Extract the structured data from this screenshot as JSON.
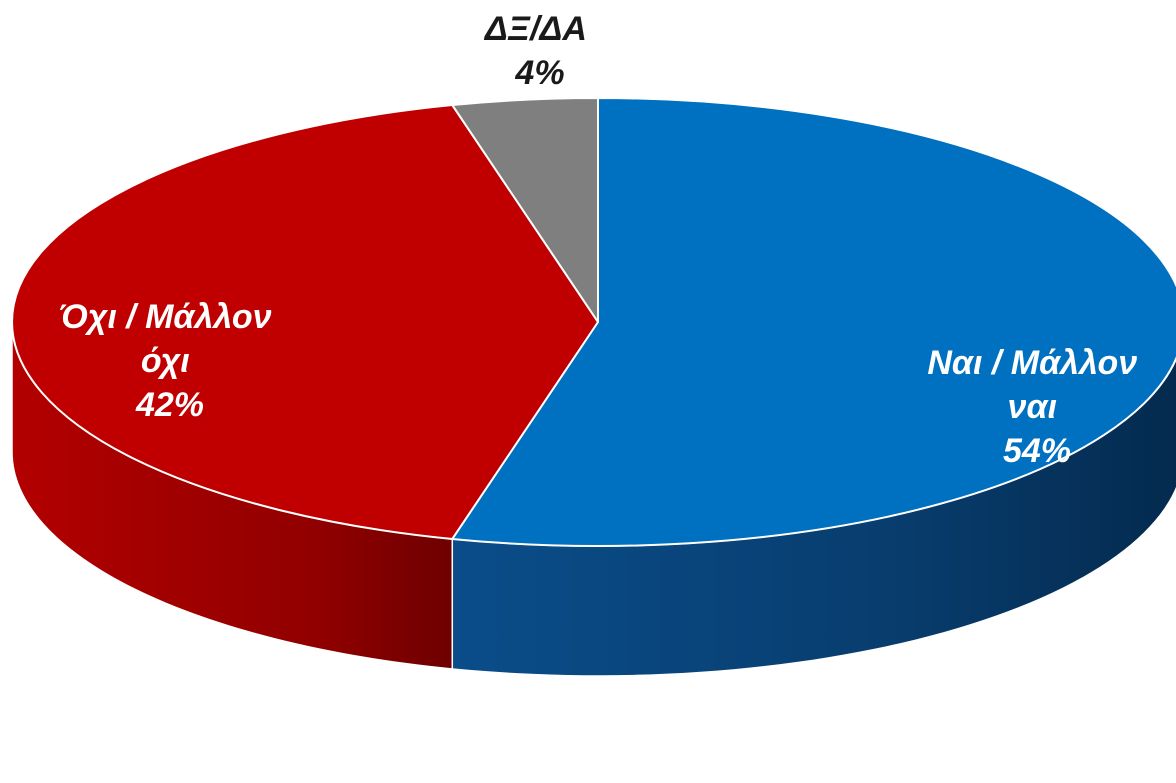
{
  "chart_data": {
    "type": "pie",
    "title": "",
    "three_d": true,
    "start_angle_deg": 0,
    "direction": "clockwise",
    "slices": [
      {
        "name_lines": [
          "Ναι / Μάλλον",
          "ναι"
        ],
        "percent_label": "54%",
        "value": 54,
        "color": "#0070c0",
        "label_color": "#ffffff"
      },
      {
        "name_lines": [
          "Όχι / Μάλλον",
          "όχι"
        ],
        "percent_label": "42%",
        "value": 42,
        "color": "#c00000",
        "label_color": "#ffffff"
      },
      {
        "name_lines": [
          "ΔΞ/ΔΑ"
        ],
        "percent_label": "4%",
        "value": 4,
        "color": "#7f7f7f",
        "label_color": "#1a1a1a"
      }
    ]
  }
}
